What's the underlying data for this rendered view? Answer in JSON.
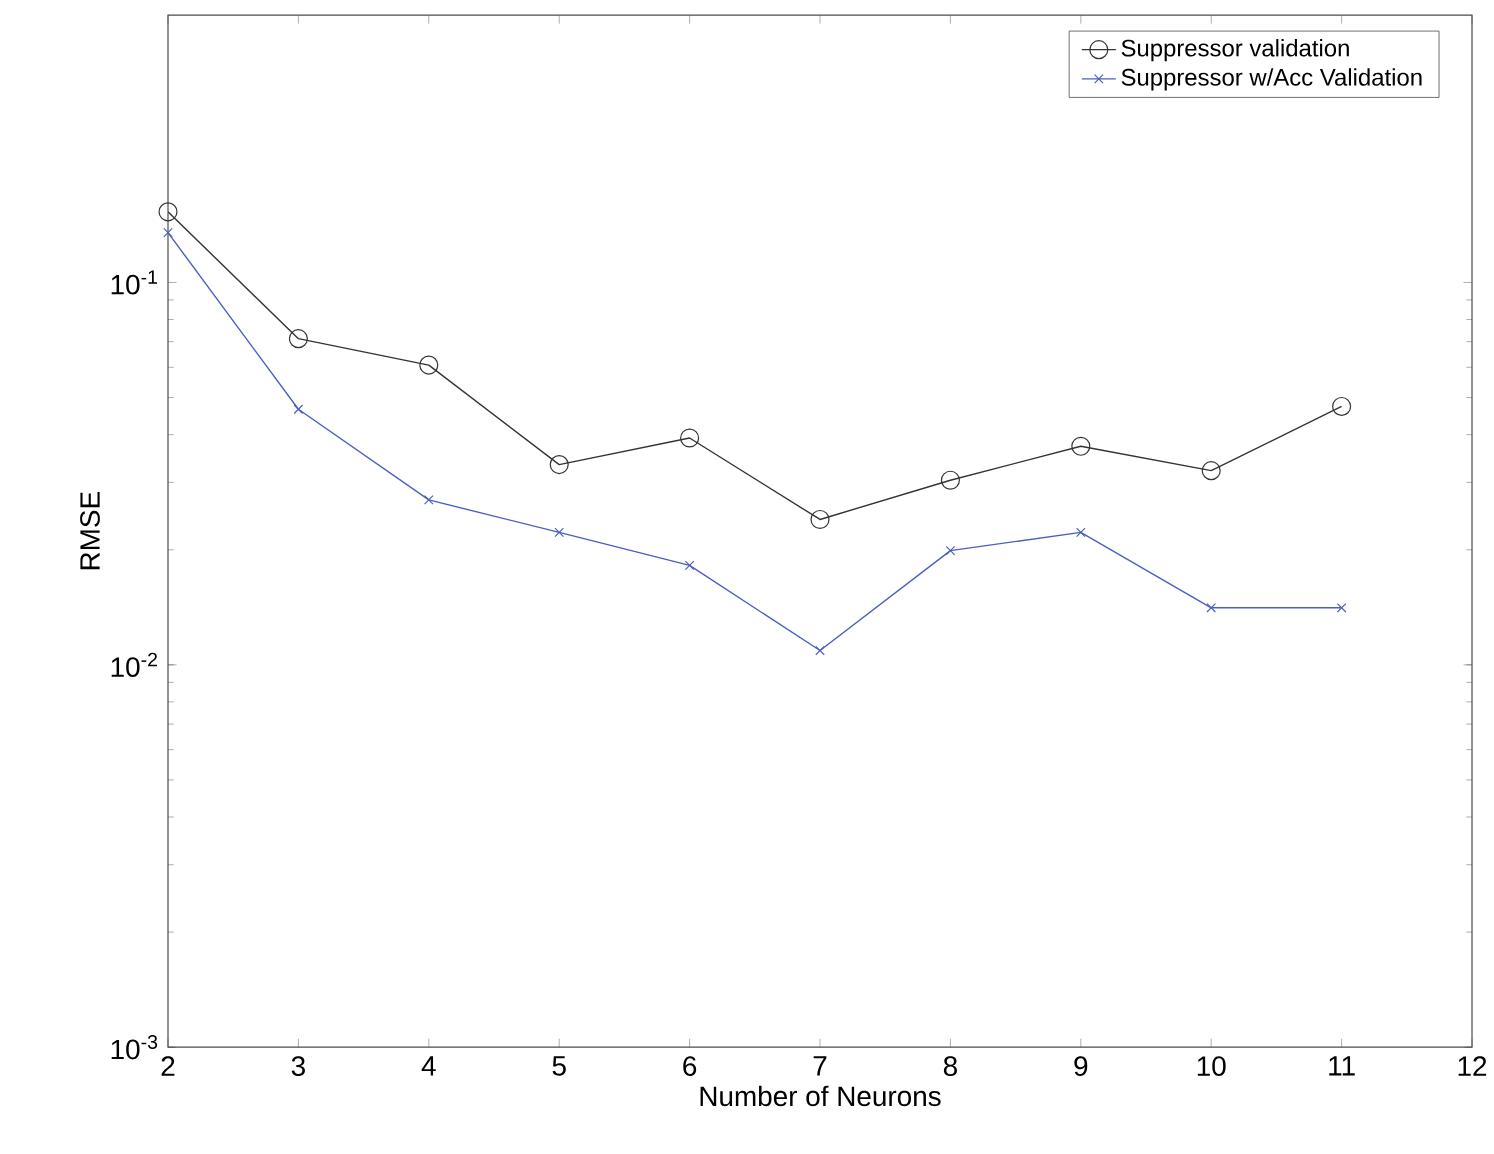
{
  "chart_data": {
    "type": "line",
    "xlabel": "Number of Neurons",
    "ylabel": "RMSE",
    "x": [
      2,
      3,
      4,
      5,
      6,
      7,
      8,
      9,
      10,
      11
    ],
    "series": [
      {
        "name": "Suppressor validation",
        "color": "#333333",
        "marker": "circle",
        "values": [
          0.153,
          0.0713,
          0.0608,
          0.0334,
          0.0392,
          0.024,
          0.0304,
          0.0373,
          0.0322,
          0.0474
        ]
      },
      {
        "name": "Suppressor w/Acc Validation",
        "color": "#4a5fc0",
        "marker": "cross",
        "values": [
          0.135,
          0.0466,
          0.027,
          0.0222,
          0.0182,
          0.0109,
          0.0199,
          0.0222,
          0.0141,
          0.0141
        ]
      }
    ],
    "log": "y",
    "xlim": [
      2,
      12
    ],
    "ylim": [
      0.001,
      0.5
    ],
    "xticks": [
      2,
      3,
      4,
      5,
      6,
      7,
      8,
      9,
      10,
      11,
      12
    ],
    "yticks": [
      {
        "value": 0.001,
        "label": "10$^{-3}$"
      },
      {
        "value": 0.01,
        "label": "10$^{-2}$"
      },
      {
        "value": 0.1,
        "label": "10$^{-1}$"
      }
    ],
    "legend": "top right",
    "line_style": "solid"
  }
}
